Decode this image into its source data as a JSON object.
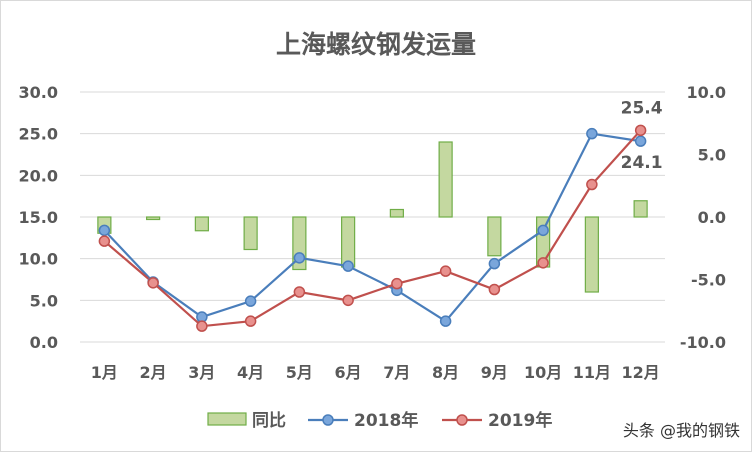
{
  "chart_data": {
    "type": "bar+line",
    "title": "上海螺纹钢发运量",
    "categories": [
      "1月",
      "2月",
      "3月",
      "4月",
      "5月",
      "6月",
      "7月",
      "8月",
      "9月",
      "10月",
      "11月",
      "12月"
    ],
    "y_left": {
      "ticks": [
        "0.0",
        "5.0",
        "10.0",
        "15.0",
        "20.0",
        "25.0",
        "30.0"
      ],
      "lim": [
        0,
        30
      ]
    },
    "y_right": {
      "ticks": [
        "-10.0",
        "-5.0",
        "0.0",
        "5.0",
        "10.0"
      ],
      "lim": [
        -10,
        10
      ]
    },
    "series": [
      {
        "name": "同比",
        "type": "bar",
        "axis": "right",
        "color": "#c4d8a0",
        "edge": "#70ad47",
        "values": [
          -1.3,
          -0.2,
          -1.1,
          -2.6,
          -4.2,
          -4.0,
          0.6,
          6.0,
          -3.1,
          -4.0,
          -6.0,
          1.3
        ]
      },
      {
        "name": "2018年",
        "type": "line",
        "axis": "left",
        "color": "#4a7ebb",
        "marker": "#7aa6db",
        "values": [
          13.4,
          7.2,
          3.0,
          4.9,
          10.1,
          9.1,
          6.2,
          2.5,
          9.4,
          13.4,
          25.0,
          24.1
        ]
      },
      {
        "name": "2019年",
        "type": "line",
        "axis": "left",
        "color": "#c0504d",
        "marker": "#e8918e",
        "values": [
          12.1,
          7.1,
          1.9,
          2.5,
          6.0,
          5.0,
          7.0,
          8.5,
          6.3,
          9.5,
          18.9,
          25.4
        ]
      }
    ],
    "data_labels": [
      {
        "series": "2019年",
        "index": 11,
        "text": "25.4"
      },
      {
        "series": "2018年",
        "index": 11,
        "text": "24.1"
      }
    ],
    "legend": "bottom",
    "grid": true
  },
  "watermark": "头条 @我的钢铁"
}
